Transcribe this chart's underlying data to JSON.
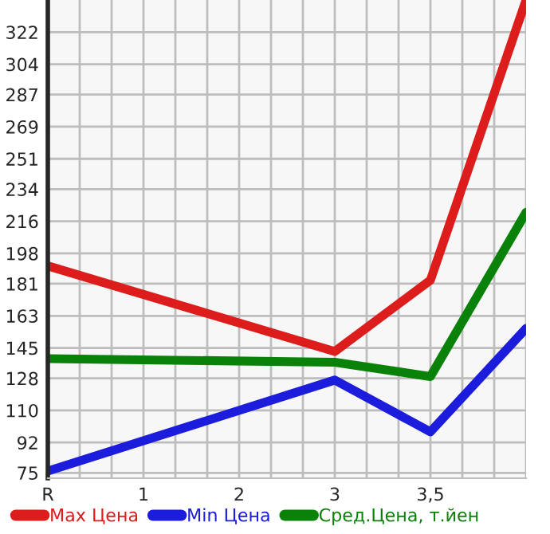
{
  "chart_data": {
    "type": "line",
    "categories": [
      "R",
      "1",
      "2",
      "3",
      "3,5",
      null
    ],
    "series": [
      {
        "name": "Max Цена",
        "color": "#dd1c1c",
        "values": [
          191,
          null,
          null,
          143,
          183,
          340
        ]
      },
      {
        "name": "Min Цена",
        "color": "#1c1cdd",
        "values": [
          76,
          null,
          null,
          127,
          98,
          156
        ]
      },
      {
        "name": "Сред.Цена, т.йен",
        "color": "#0a820a",
        "values": [
          139,
          null,
          null,
          137,
          129,
          221
        ]
      }
    ],
    "ylim": [
      72,
      340
    ],
    "yticks": [
      75,
      92,
      110,
      128,
      145,
      163,
      181,
      198,
      216,
      234,
      251,
      269,
      287,
      304,
      322
    ],
    "grid": true,
    "legend": "bottom",
    "marker": "none",
    "line_style": "solid"
  }
}
